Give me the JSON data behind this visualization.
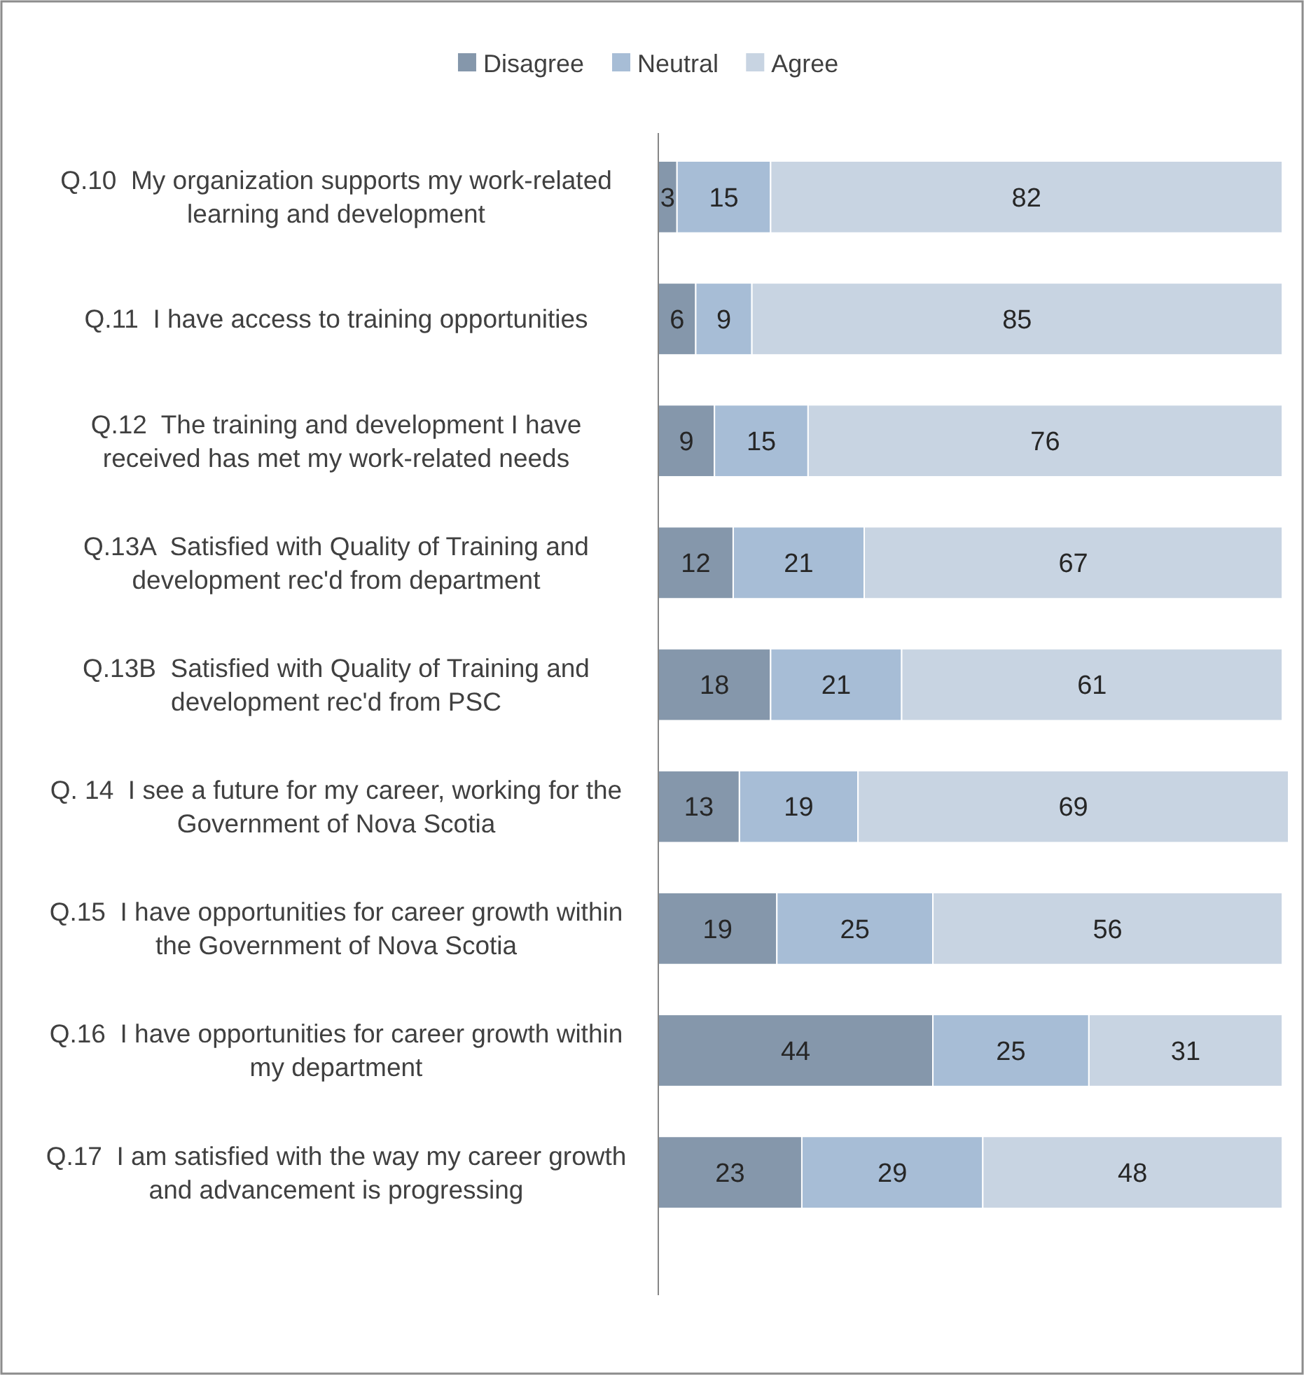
{
  "chart_data": {
    "type": "bar",
    "orientation": "horizontal",
    "stacked": true,
    "data_labels": true,
    "legend": "top",
    "categories": [
      "Q.10  My organization supports my work-related learning and development",
      "Q.11  I have access to training opportunities",
      "Q.12  The training and development I have received has met my work-related needs",
      "Q.13A  Satisfied with Quality of Training and development rec'd from department",
      "Q.13B  Satisfied with Quality of Training and development rec'd from PSC",
      "Q. 14  I see a future for my career, working for the Government of Nova Scotia",
      "Q.15  I have opportunities for career growth within the Government of Nova Scotia",
      "Q.16  I have opportunities for career growth within my department",
      "Q.17  I am satisfied with the way my career growth and advancement is progressing"
    ],
    "series": [
      {
        "name": "Disagree",
        "color": "#8597ab",
        "values": [
          3,
          6,
          9,
          12,
          18,
          13,
          19,
          44,
          23
        ]
      },
      {
        "name": "Neutral",
        "color": "#a7bdd6",
        "values": [
          15,
          9,
          15,
          21,
          21,
          19,
          25,
          25,
          29
        ]
      },
      {
        "name": "Agree",
        "color": "#c8d4e2",
        "values": [
          82,
          85,
          76,
          67,
          61,
          69,
          56,
          31,
          48
        ]
      }
    ]
  }
}
